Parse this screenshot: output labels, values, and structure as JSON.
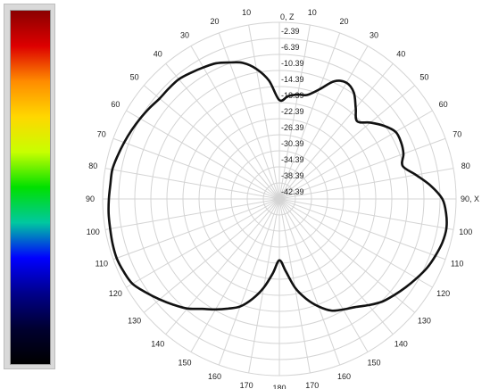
{
  "colorbar": {
    "stops": [
      "#8b0000",
      "#dd0000",
      "#ff8c00",
      "#ffd700",
      "#c8ff00",
      "#00e000",
      "#00c8a0",
      "#0000ff",
      "#00008b",
      "#000030",
      "#000000"
    ]
  },
  "chart_data": {
    "type": "polar-line",
    "title": "",
    "angle_labels": [
      "0, Z",
      "10",
      "20",
      "30",
      "40",
      "50",
      "60",
      "70",
      "80",
      "90, X",
      "100",
      "110",
      "120",
      "130",
      "140",
      "150",
      "160",
      "170",
      "180",
      "170",
      "160",
      "150",
      "140",
      "130",
      "120",
      "110",
      "100",
      "90",
      "80",
      "70",
      "60",
      "50",
      "40",
      "30",
      "20",
      "10"
    ],
    "radial_labels": [
      "-2.39",
      "-6.39",
      "-10.39",
      "-14.39",
      "-18.39",
      "-22.39",
      "-26.39",
      "-30.39",
      "-34.39",
      "-38.39",
      "-42.39"
    ],
    "r_range": [
      -42.39,
      -2.39
    ],
    "grid": true,
    "line_color": "#111111",
    "series": [
      {
        "theta": [
          0,
          5,
          10,
          15,
          20,
          25,
          30,
          35,
          40,
          45,
          50,
          55,
          60,
          65,
          70,
          75,
          80,
          85,
          90,
          95,
          100,
          105,
          110,
          115,
          120,
          125,
          130,
          135,
          140,
          145,
          150,
          155,
          160,
          165,
          170,
          175,
          180,
          185,
          190,
          195,
          200,
          205,
          210,
          215,
          220,
          225,
          230,
          235,
          240,
          245,
          250,
          255,
          260,
          265,
          270,
          275,
          280,
          285,
          290,
          295,
          300,
          305,
          310,
          315,
          320,
          325,
          330,
          335,
          340,
          345,
          350,
          355
        ],
        "r": [
          -20.0,
          -19.0,
          -18.4,
          -18.0,
          -16.0,
          -13.0,
          -12.0,
          -13.0,
          -15.5,
          -17.5,
          -15.5,
          -13.5,
          -12.0,
          -12.0,
          -12.5,
          -13.5,
          -11.0,
          -8.0,
          -5.5,
          -4.5,
          -4.0,
          -4.2,
          -4.8,
          -5.5,
          -6.5,
          -7.5,
          -8.5,
          -9.5,
          -11.0,
          -12.5,
          -13.5,
          -14.5,
          -16.5,
          -19.0,
          -22.0,
          -26.0,
          -28.5,
          -25.5,
          -22.0,
          -19.0,
          -16.5,
          -15.0,
          -13.5,
          -12.0,
          -10.0,
          -8.5,
          -7.0,
          -5.5,
          -4.0,
          -3.5,
          -3.2,
          -3.3,
          -3.5,
          -3.6,
          -3.8,
          -4.0,
          -4.0,
          -4.5,
          -5.0,
          -5.5,
          -6.0,
          -6.5,
          -7.0,
          -7.0,
          -7.0,
          -7.5,
          -8.0,
          -8.5,
          -9.5,
          -10.5,
          -12.5,
          -15.5
        ]
      }
    ]
  }
}
